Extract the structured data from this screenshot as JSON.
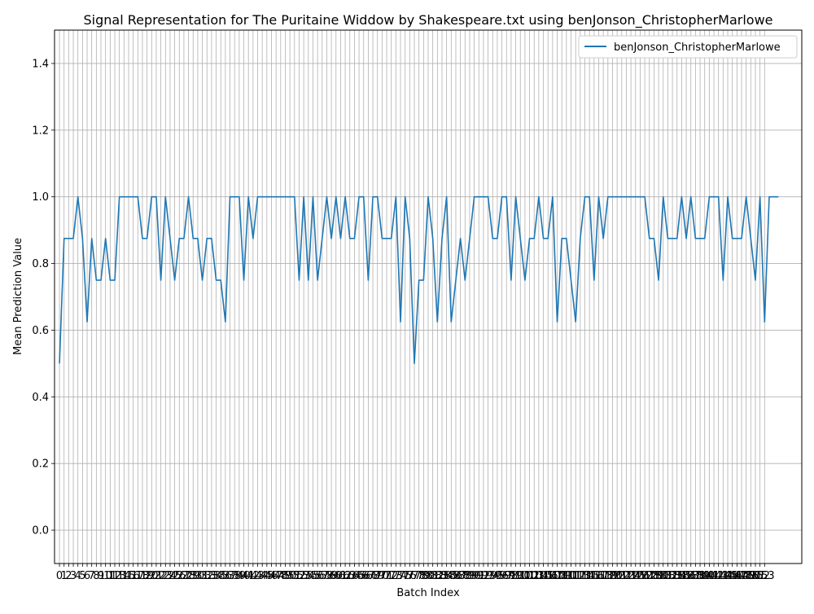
{
  "chart_data": {
    "type": "line",
    "title": "Signal Representation for The Puritaine Widdow by Shakespeare.txt using benJonson_ChristopherMarlowe",
    "xlabel": "Batch Index",
    "ylabel": "Mean Prediction Value",
    "xlim": [
      -1.07,
      161.07
    ],
    "ylim": [
      -0.1,
      1.5
    ],
    "yticks": [
      0.0,
      0.2,
      0.4,
      0.6,
      0.8,
      1.0,
      1.2,
      1.4
    ],
    "xticks_start": 0,
    "xticks_end": 153,
    "grid": true,
    "legend": "top-right",
    "series": [
      {
        "name": "benJonson_ChristopherMarlowe",
        "color": "#1f77b4",
        "x_start": 0,
        "x_step": 1,
        "values": [
          0.5,
          0.875,
          0.875,
          0.875,
          1.0,
          0.875,
          0.625,
          0.875,
          0.75,
          0.75,
          0.875,
          0.75,
          0.75,
          1.0,
          1.0,
          1.0,
          1.0,
          1.0,
          0.875,
          0.875,
          1.0,
          1.0,
          0.75,
          1.0,
          0.875,
          0.75,
          0.875,
          0.875,
          1.0,
          0.875,
          0.875,
          0.75,
          0.875,
          0.875,
          0.75,
          0.75,
          0.625,
          1.0,
          1.0,
          1.0,
          0.75,
          1.0,
          0.875,
          1.0,
          1.0,
          1.0,
          1.0,
          1.0,
          1.0,
          1.0,
          1.0,
          1.0,
          0.75,
          1.0,
          0.75,
          1.0,
          0.75,
          0.875,
          1.0,
          0.875,
          1.0,
          0.875,
          1.0,
          0.875,
          0.875,
          1.0,
          1.0,
          0.75,
          1.0,
          1.0,
          0.875,
          0.875,
          0.875,
          1.0,
          0.625,
          1.0,
          0.875,
          0.5,
          0.75,
          0.75,
          1.0,
          0.875,
          0.625,
          0.875,
          1.0,
          0.625,
          0.75,
          0.875,
          0.75,
          0.875,
          1.0,
          1.0,
          1.0,
          1.0,
          0.875,
          0.875,
          1.0,
          1.0,
          0.75,
          1.0,
          0.875,
          0.75,
          0.875,
          0.875,
          1.0,
          0.875,
          0.875,
          1.0,
          0.625,
          0.875,
          0.875,
          0.75,
          0.625,
          0.875,
          1.0,
          1.0,
          0.75,
          1.0,
          0.875,
          1.0,
          1.0,
          1.0,
          1.0,
          1.0,
          1.0,
          1.0,
          1.0,
          1.0,
          0.875,
          0.875,
          0.75,
          1.0,
          0.875,
          0.875,
          0.875,
          1.0,
          0.875,
          1.0,
          0.875,
          0.875,
          0.875,
          1.0,
          1.0,
          1.0,
          0.75,
          1.0,
          0.875,
          0.875,
          0.875,
          1.0,
          0.875,
          0.75,
          1.0,
          0.625,
          1.0,
          1.0,
          1.0
        ]
      }
    ]
  }
}
